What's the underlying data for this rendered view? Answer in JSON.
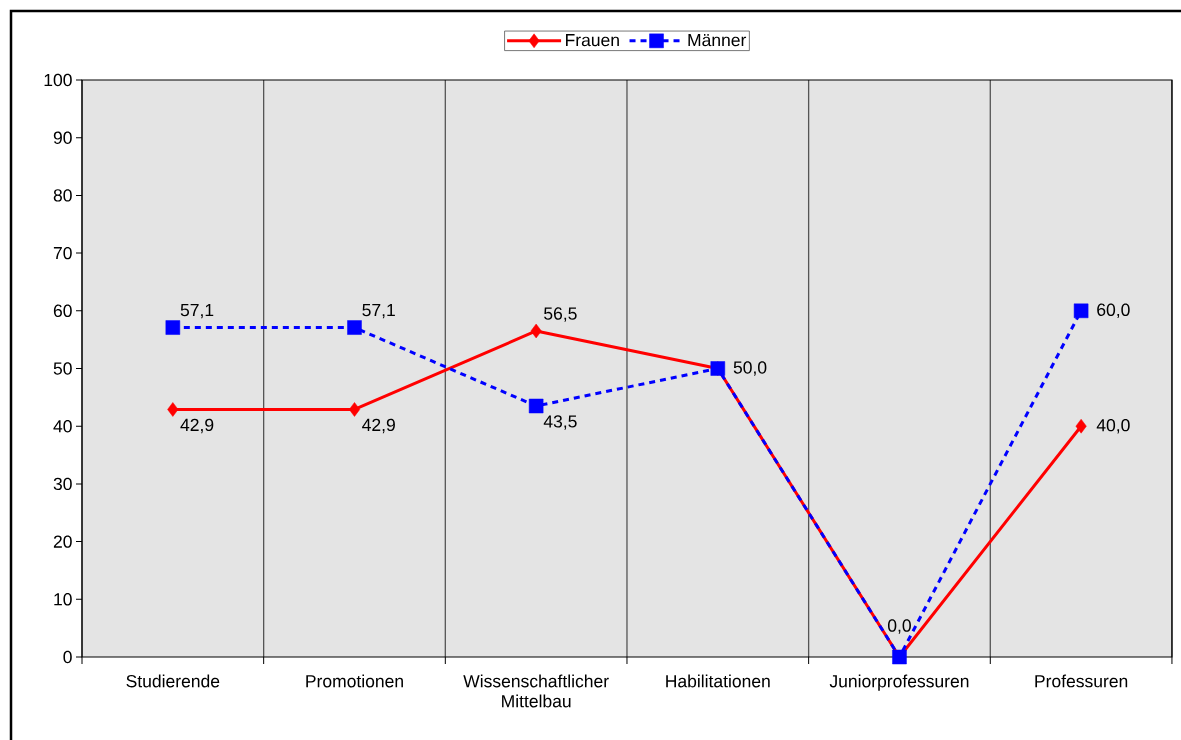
{
  "chart_data": {
    "type": "line",
    "categories": [
      "Studierende",
      "Promotionen",
      "Wissenschaftlicher Mittelbau",
      "Habilitationen",
      "Juniorprofessuren",
      "Professuren"
    ],
    "series": [
      {
        "name": "Frauen",
        "color": "#ff0000",
        "marker": "diamond",
        "line_style": "solid",
        "values": [
          42.9,
          42.9,
          56.5,
          50.0,
          0.0,
          40.0
        ],
        "value_labels": [
          "42,9",
          "42,9",
          "56,5",
          null,
          null,
          "40,0"
        ]
      },
      {
        "name": "Männer",
        "color": "#0000ff",
        "marker": "square",
        "line_style": "dashed",
        "values": [
          57.1,
          57.1,
          43.5,
          50.0,
          0.0,
          60.0
        ],
        "value_labels": [
          "57,1",
          "57,1",
          "43,5",
          "50,0",
          "0,0",
          "60,0"
        ]
      }
    ],
    "ylim": [
      0,
      100
    ],
    "yticks": [
      0,
      10,
      20,
      30,
      40,
      50,
      60,
      70,
      80,
      90,
      100
    ],
    "grid": "x",
    "legend": "top"
  }
}
